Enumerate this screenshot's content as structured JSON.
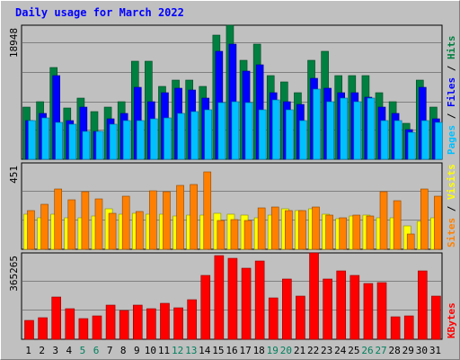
{
  "title": "Daily usage for March 2022",
  "chart_data": [
    {
      "type": "bar",
      "title": "Daily usage for March 2022",
      "categories": [
        "1",
        "2",
        "3",
        "4",
        "5",
        "6",
        "7",
        "8",
        "9",
        "10",
        "11",
        "12",
        "13",
        "14",
        "15",
        "16",
        "17",
        "18",
        "19",
        "20",
        "21",
        "22",
        "23",
        "24",
        "25",
        "26",
        "27",
        "28",
        "29",
        "30",
        "31"
      ],
      "weekend_days": [
        5,
        6,
        12,
        13,
        19,
        20,
        26,
        27
      ],
      "ymax_label": "18948",
      "ylim": [
        0,
        18948
      ],
      "grid": true,
      "series": [
        {
          "name": "Hits",
          "color": "#008040",
          "values": [
            7400,
            8100,
            13000,
            7200,
            8600,
            6800,
            7400,
            8100,
            13900,
            13900,
            10300,
            11200,
            11200,
            10300,
            17600,
            18948,
            14000,
            16300,
            11800,
            10900,
            9400,
            14000,
            15200,
            11800,
            11800,
            11800,
            9400,
            8100,
            5100,
            11200,
            7400
          ]
        },
        {
          "name": "Files",
          "color": "#0000ff",
          "values": [
            5500,
            6500,
            11800,
            5500,
            7400,
            3900,
            5700,
            6500,
            10200,
            8100,
            9400,
            10000,
            9800,
            8600,
            15200,
            16300,
            12400,
            13400,
            9400,
            8100,
            7700,
            11400,
            10000,
            9400,
            9400,
            8800,
            7400,
            6500,
            4200,
            10200,
            5700
          ]
        },
        {
          "name": "Pages",
          "color": "#00c0ff",
          "values": [
            5500,
            5900,
            5200,
            4900,
            3900,
            3900,
            4900,
            5500,
            5500,
            5700,
            5900,
            6500,
            6700,
            7000,
            8000,
            8100,
            8000,
            7000,
            8400,
            7000,
            5500,
            9900,
            8100,
            8600,
            8100,
            8600,
            5500,
            5500,
            3800,
            5500,
            5200
          ]
        }
      ]
    },
    {
      "type": "bar",
      "categories": [
        "1",
        "2",
        "3",
        "4",
        "5",
        "6",
        "7",
        "8",
        "9",
        "10",
        "11",
        "12",
        "13",
        "14",
        "15",
        "16",
        "17",
        "18",
        "19",
        "20",
        "21",
        "22",
        "23",
        "24",
        "25",
        "26",
        "27",
        "28",
        "29",
        "30",
        "31"
      ],
      "ymax_label": "451",
      "ylim": [
        0,
        451
      ],
      "grid": true,
      "series": [
        {
          "name": "Visits",
          "color": "#ffff00",
          "values": [
            185,
            165,
            185,
            165,
            165,
            175,
            210,
            185,
            190,
            185,
            185,
            175,
            180,
            180,
            190,
            185,
            180,
            165,
            180,
            210,
            200,
            210,
            185,
            160,
            175,
            180,
            165,
            165,
            120,
            145,
            165
          ]
        },
        {
          "name": "Sites",
          "color": "#ff8000",
          "values": [
            200,
            235,
            315,
            260,
            300,
            265,
            190,
            275,
            195,
            305,
            300,
            335,
            340,
            405,
            150,
            155,
            150,
            215,
            220,
            200,
            200,
            220,
            180,
            165,
            180,
            175,
            300,
            255,
            80,
            315,
            275
          ]
        }
      ]
    },
    {
      "type": "bar",
      "categories": [
        "1",
        "2",
        "3",
        "4",
        "5",
        "6",
        "7",
        "8",
        "9",
        "10",
        "11",
        "12",
        "13",
        "14",
        "15",
        "16",
        "17",
        "18",
        "19",
        "20",
        "21",
        "22",
        "23",
        "24",
        "25",
        "26",
        "27",
        "28",
        "29",
        "30",
        "31"
      ],
      "ymax_label": "365265",
      "ylim": [
        0,
        365265
      ],
      "grid": true,
      "series": [
        {
          "name": "KBytes",
          "color": "#ff0000",
          "values": [
            80000,
            93000,
            180000,
            128000,
            88000,
            100000,
            145000,
            120000,
            145000,
            130000,
            151000,
            133000,
            167000,
            272000,
            355000,
            344000,
            300000,
            331000,
            176000,
            255000,
            183000,
            365265,
            256000,
            288000,
            271000,
            236000,
            240000,
            96000,
            98000,
            290000,
            182000
          ]
        }
      ]
    }
  ]
}
